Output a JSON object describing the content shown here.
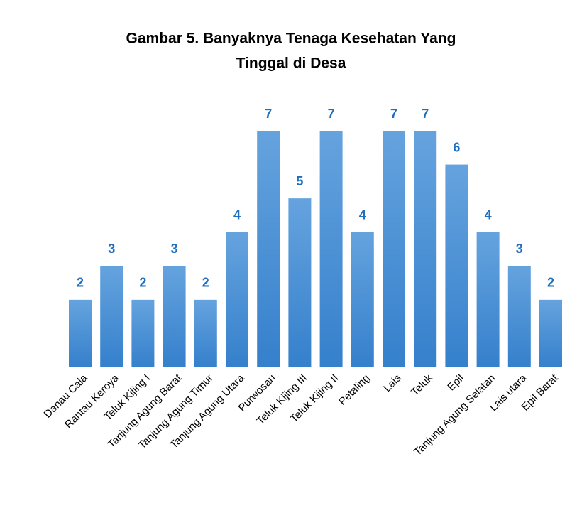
{
  "chart_data": {
    "type": "bar",
    "title": [
      "Gambar 5. Banyaknya Tenaga Kesehatan Yang",
      "Tinggal di Desa"
    ],
    "categories": [
      "Danau Cala",
      "Rantau Keroya",
      "Teluk Kijing I",
      "Tanjung Agung Barat",
      "Tanjung Agung Timur",
      "Tanjung Agung Utara",
      "Purwosari",
      "Teluk Kijing III",
      "Teluk Kijing II",
      "Petaling",
      "Lais",
      "Teluk",
      "Epil",
      "Tanjung Agung Selatan",
      "Lais utara",
      "Epil Barat"
    ],
    "values": [
      2,
      3,
      2,
      3,
      2,
      4,
      7,
      5,
      7,
      4,
      7,
      7,
      6,
      4,
      3,
      2
    ],
    "color": "#4a8fd6",
    "label_color": "#1f6fbf"
  }
}
